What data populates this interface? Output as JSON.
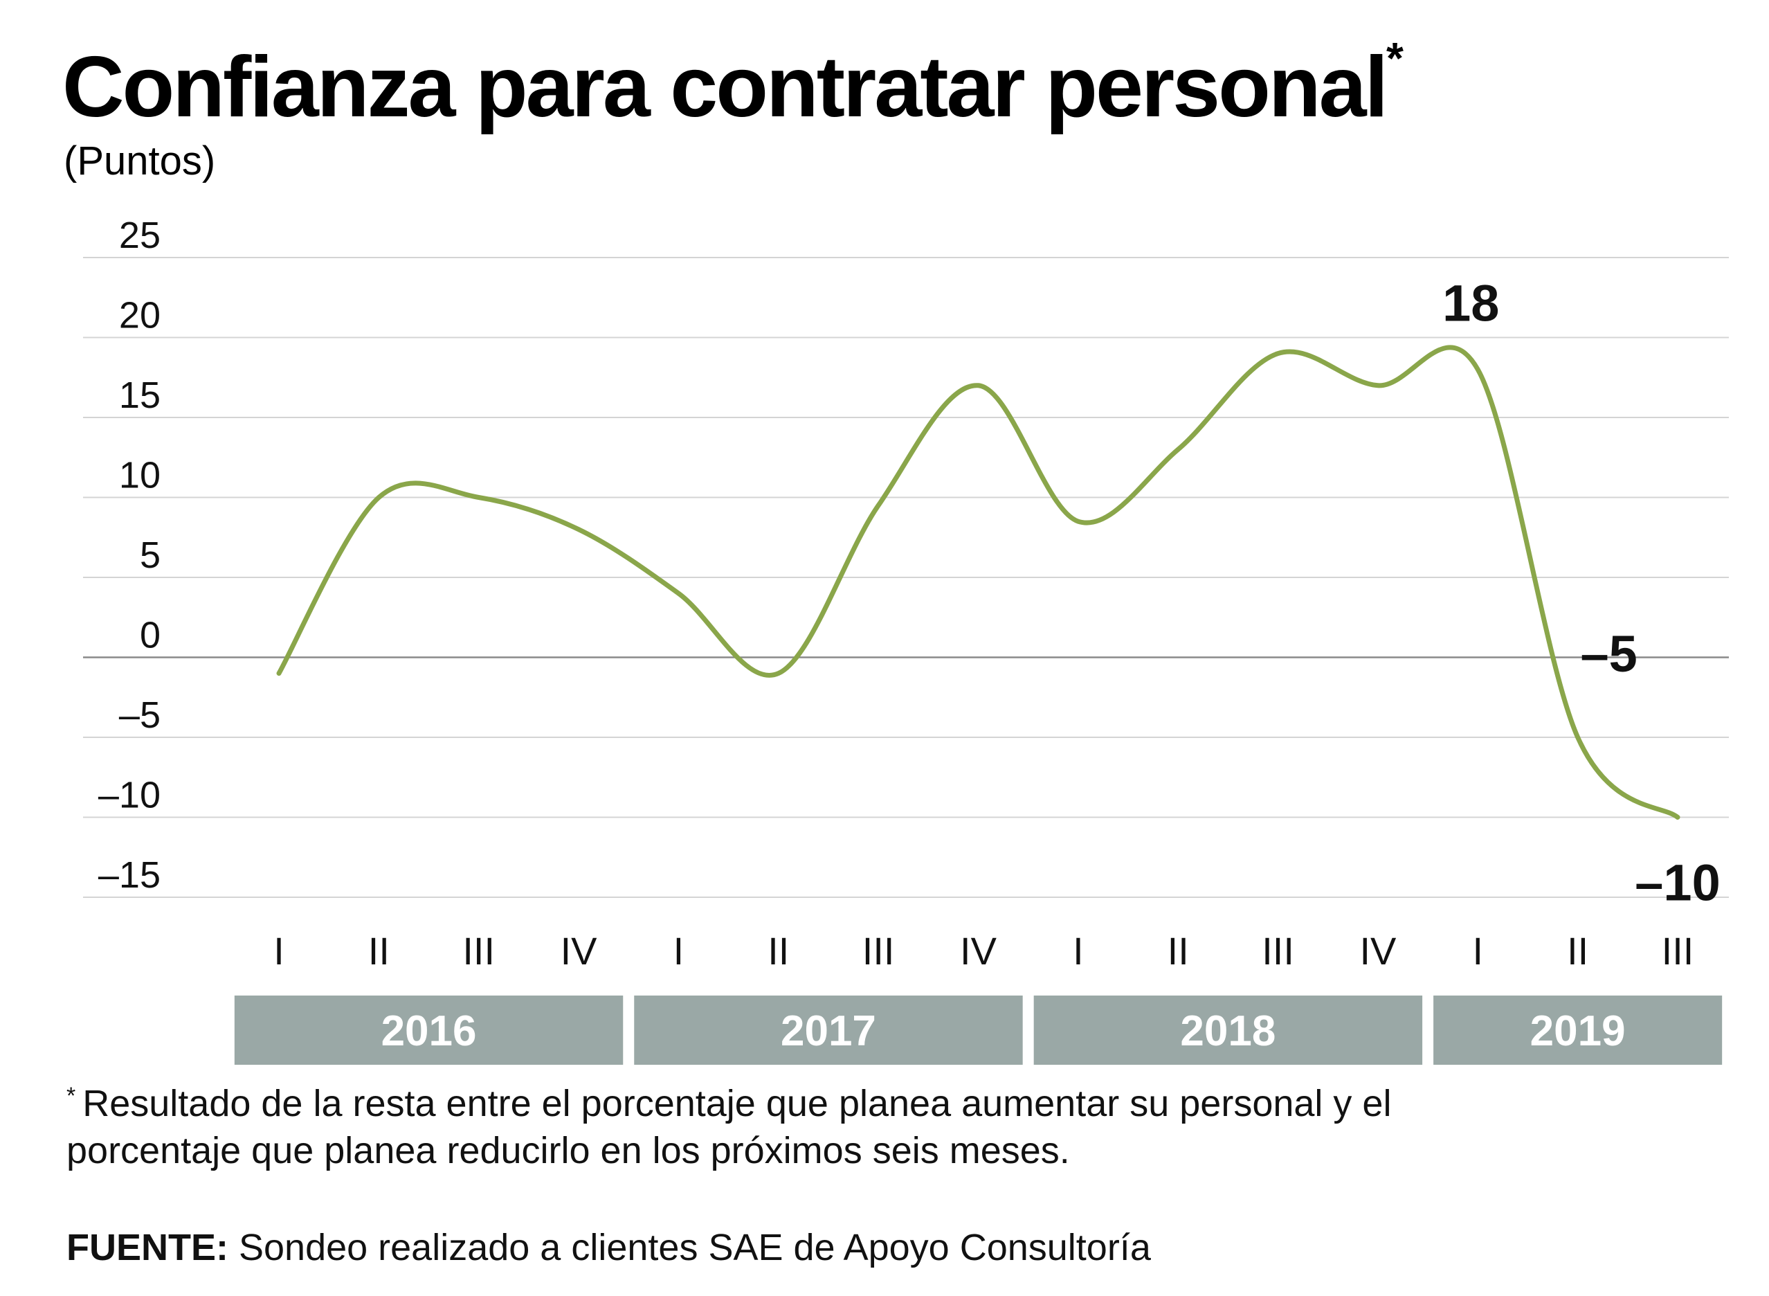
{
  "chart_data": {
    "type": "line",
    "title": "Confianza para contratar personal",
    "title_mark": "*",
    "subtitle": "(Puntos)",
    "xlabel": "",
    "ylabel": "",
    "ylim": [
      -15,
      25
    ],
    "yticks": [
      25,
      20,
      15,
      10,
      5,
      0,
      -5,
      -10,
      -15
    ],
    "ytick_labels": [
      "25",
      "20",
      "15",
      "10",
      "5",
      "0",
      "–5",
      "–10",
      "–15"
    ],
    "grid": true,
    "categories": [
      "I",
      "II",
      "III",
      "IV",
      "I",
      "II",
      "III",
      "IV",
      "I",
      "II",
      "III",
      "IV",
      "I",
      "II",
      "III"
    ],
    "groups": [
      {
        "label": "2016",
        "from": 0,
        "to": 3
      },
      {
        "label": "2017",
        "from": 4,
        "to": 7
      },
      {
        "label": "2018",
        "from": 8,
        "to": 11
      },
      {
        "label": "2019",
        "from": 12,
        "to": 14
      }
    ],
    "series": [
      {
        "values": [
          -1,
          10,
          10,
          8,
          4,
          -1,
          9.5,
          17,
          8.5,
          13,
          19,
          17,
          18,
          -5,
          -10
        ],
        "color": "#8aa64a"
      }
    ],
    "annotations": [
      {
        "label": "18",
        "index": 12
      },
      {
        "label": "–5",
        "index": 13
      },
      {
        "label": "–10",
        "index": 14
      }
    ],
    "year_band_color": "#9aa8a6"
  },
  "footnote": {
    "mark": "*",
    "lines": [
      "Resultado de la resta entre el porcentaje que planea aumentar su personal y el",
      "porcentaje que planea reducirlo en los próximos seis meses."
    ]
  },
  "source": {
    "label": "FUENTE:",
    "text": " Sondeo realizado a clientes SAE de Apoyo Consultoría"
  }
}
